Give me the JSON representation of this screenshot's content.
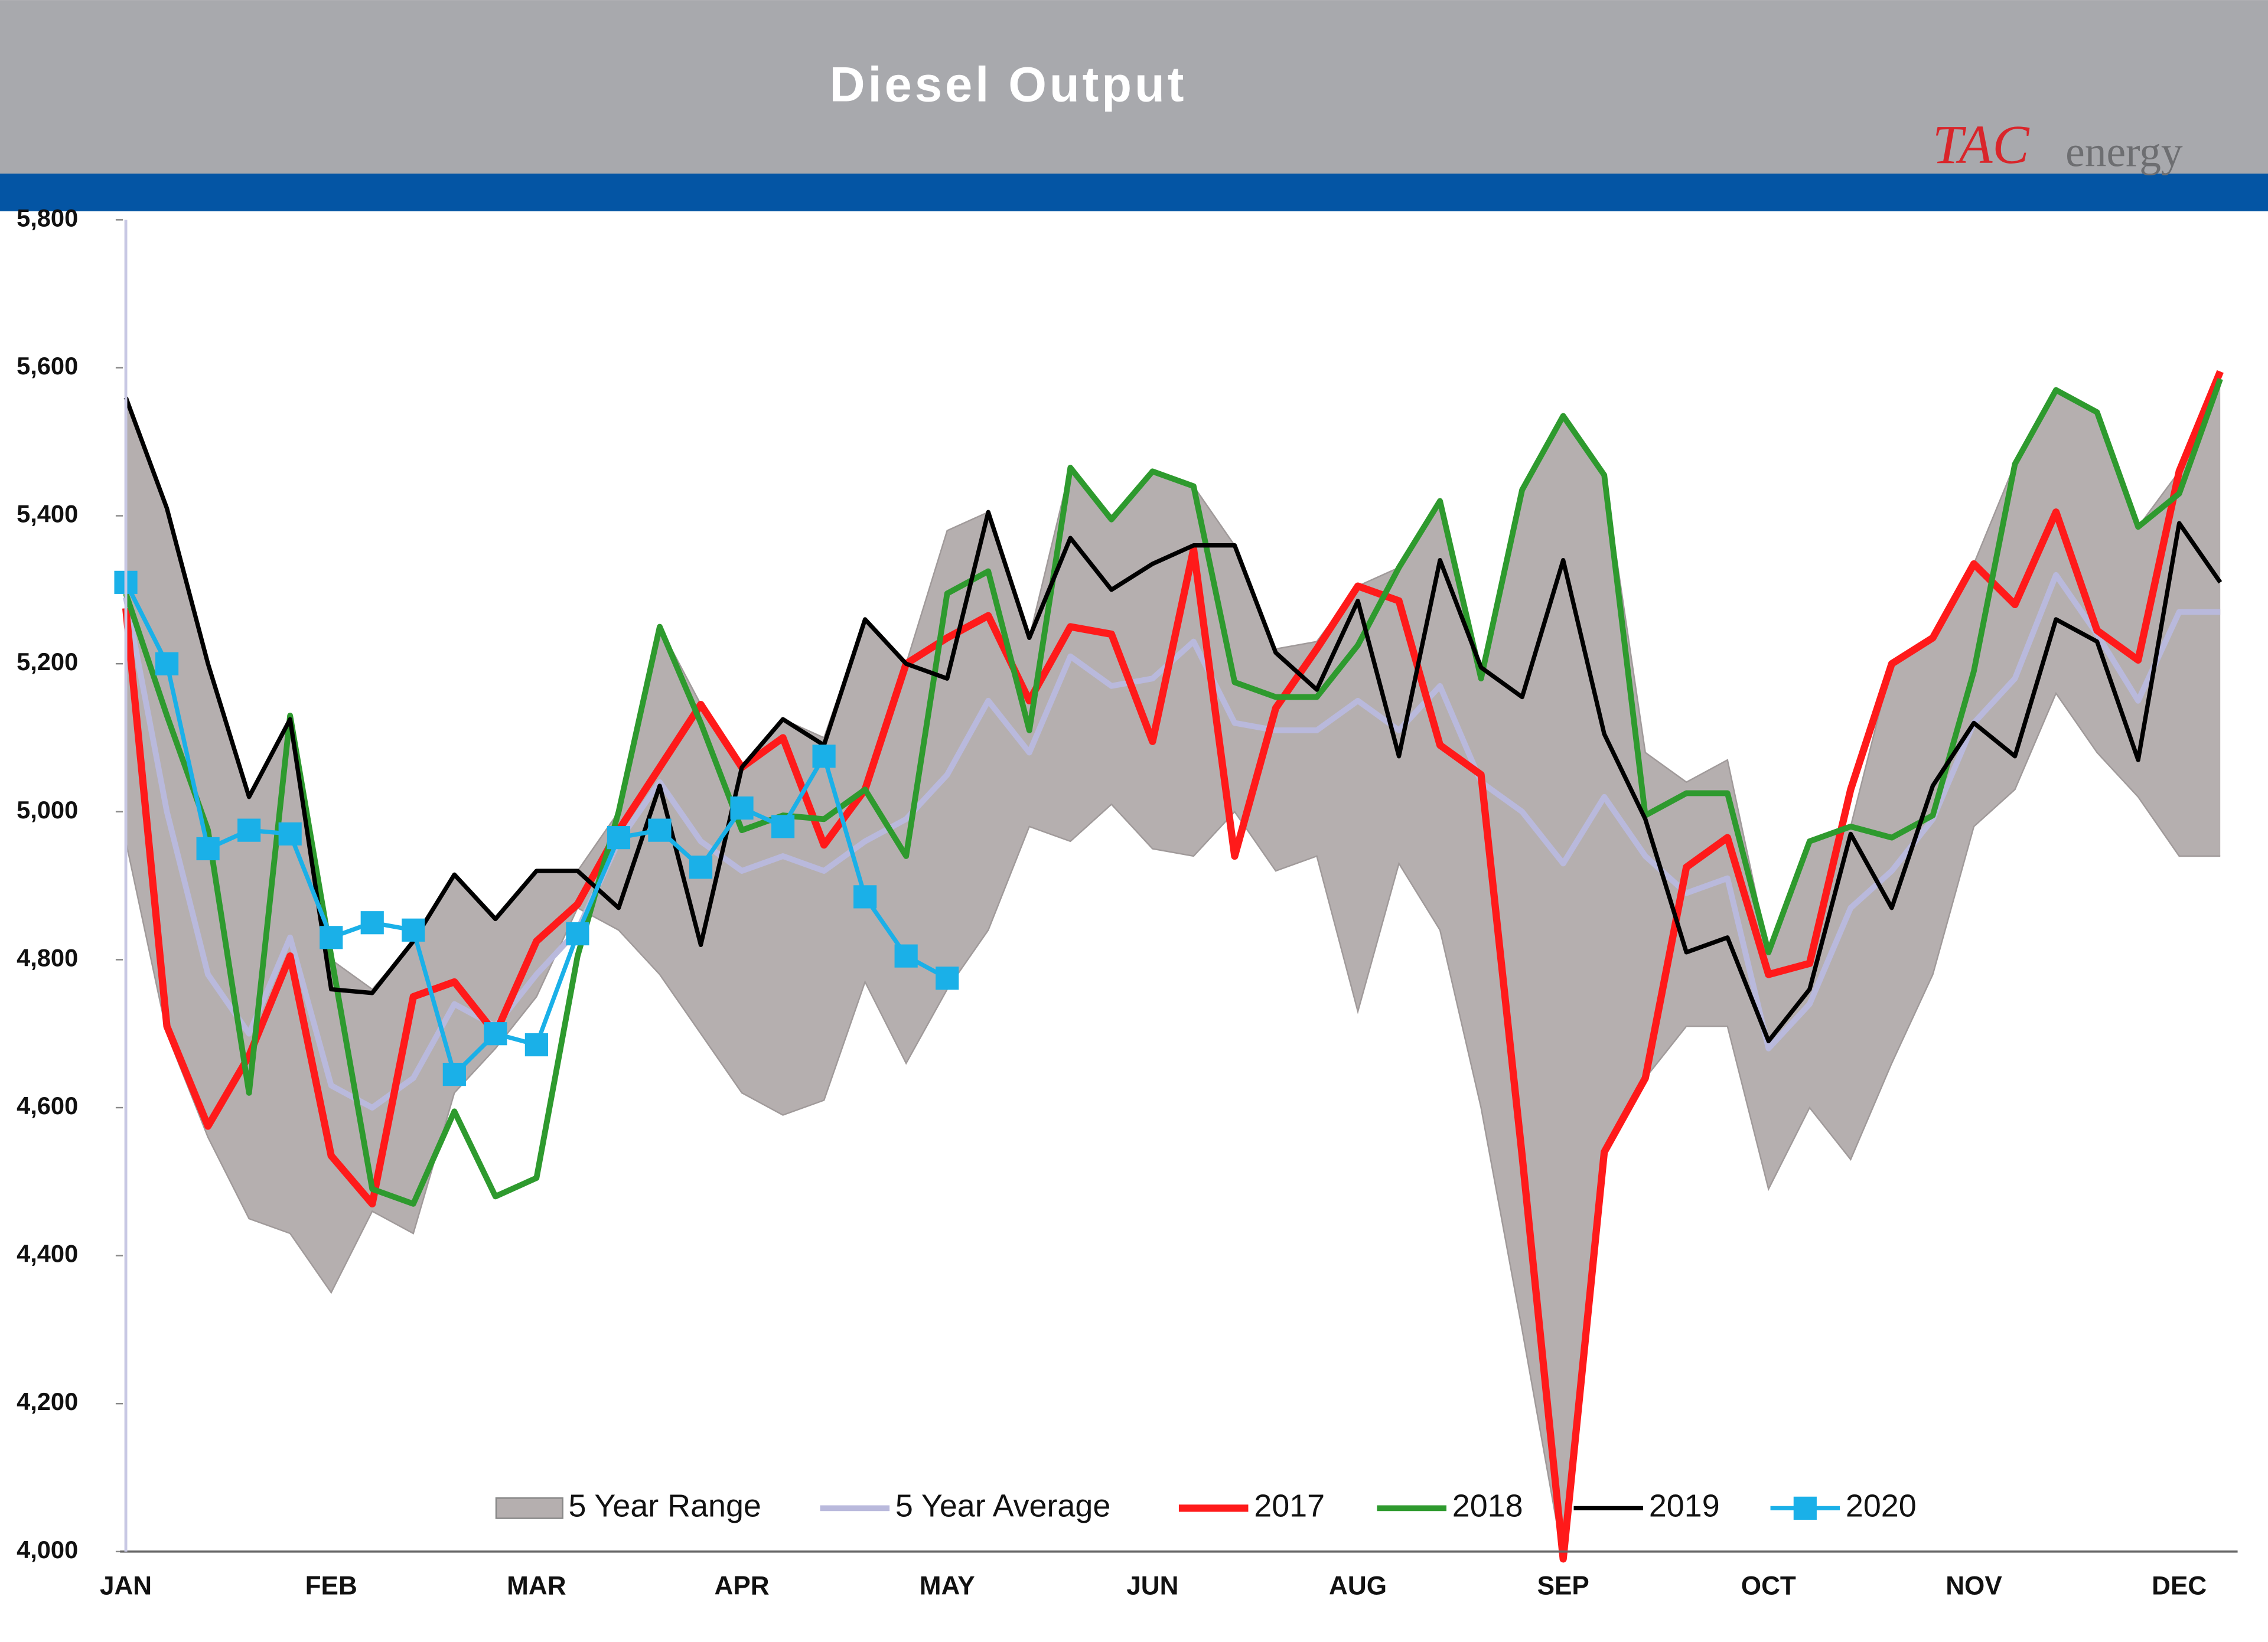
{
  "logo": {
    "mark": "TAC",
    "word": "energy"
  },
  "chart_data": {
    "type": "line",
    "title": "Diesel Output",
    "legend": "bottom",
    "categories": [
      "JAN",
      null,
      null,
      null,
      null,
      "FEB",
      null,
      null,
      null,
      null,
      "MAR",
      null,
      null,
      null,
      null,
      "APR",
      null,
      null,
      null,
      null,
      "MAY",
      null,
      null,
      null,
      null,
      "JUN",
      null,
      null,
      null,
      null,
      "AUG",
      null,
      null,
      null,
      null,
      "SEP",
      null,
      null,
      null,
      null,
      "OCT",
      null,
      null,
      null,
      null,
      "NOV",
      null,
      null,
      null,
      null,
      "DEC",
      null
    ],
    "ylim": [
      4000,
      5800
    ],
    "yticks": [
      {
        "value": 4000,
        "label": "4,000"
      },
      {
        "value": 4200,
        "label": "4,200"
      },
      {
        "value": 4400,
        "label": "4,400"
      },
      {
        "value": 4600,
        "label": "4,600"
      },
      {
        "value": 4800,
        "label": "4,800"
      },
      {
        "value": 5000,
        "label": "5,000"
      },
      {
        "value": 5200,
        "label": "5,200"
      },
      {
        "value": 5400,
        "label": "5,400"
      },
      {
        "value": 5600,
        "label": "5,600"
      },
      {
        "value": 5800,
        "label": "5,800"
      }
    ],
    "range": {
      "name": "5 Year Range",
      "color": "#b5afaf",
      "low": [
        4960,
        4700,
        4560,
        4450,
        4430,
        4350,
        4460,
        4430,
        4620,
        4680,
        4750,
        4870,
        4840,
        4780,
        4700,
        4620,
        4590,
        4610,
        4770,
        4660,
        4760,
        4840,
        4980,
        4960,
        5010,
        4950,
        4940,
        5000,
        4920,
        4940,
        4730,
        4930,
        4840,
        4600,
        4300,
        3990,
        4540,
        4640,
        4710,
        4710,
        4490,
        4600,
        4530,
        4660,
        4780,
        4980,
        5030,
        5160,
        5080,
        5020,
        4940,
        4940
      ],
      "high": [
        5560,
        5410,
        5200,
        5020,
        5125,
        4800,
        4760,
        4825,
        4915,
        4855,
        4920,
        4920,
        5000,
        5250,
        5145,
        5060,
        5125,
        5100,
        5260,
        5200,
        5380,
        5405,
        5235,
        5465,
        5400,
        5460,
        5440,
        5360,
        5220,
        5230,
        5305,
        5330,
        5420,
        5195,
        5435,
        5535,
        5455,
        5080,
        5040,
        5070,
        4810,
        4960,
        4980,
        5200,
        5235,
        5335,
        5470,
        5570,
        5540,
        5385,
        5460,
        5595
      ]
    },
    "series": [
      {
        "name": "5 Year Average",
        "color": "#b9b9dc",
        "width": 4,
        "values": [
          5290,
          5000,
          4780,
          4700,
          4830,
          4630,
          4600,
          4640,
          4740,
          4710,
          4780,
          4840,
          4960,
          5040,
          4960,
          4920,
          4940,
          4920,
          4960,
          4990,
          5050,
          5150,
          5080,
          5210,
          5170,
          5180,
          5230,
          5120,
          5110,
          5110,
          5150,
          5110,
          5170,
          5040,
          5000,
          4930,
          5020,
          4940,
          4890,
          4910,
          4680,
          4740,
          4870,
          4920,
          4990,
          5120,
          5180,
          5320,
          5240,
          5150,
          5270,
          5270
        ]
      },
      {
        "name": "2017",
        "color": "#ff1a1a",
        "width": 5,
        "values": [
          5275,
          4710,
          4575,
          4670,
          4805,
          4535,
          4470,
          4750,
          4770,
          4700,
          4825,
          4875,
          4975,
          5060,
          5145,
          5060,
          5100,
          4955,
          5030,
          5200,
          5235,
          5265,
          5150,
          5250,
          5240,
          5095,
          5355,
          4940,
          5140,
          5220,
          5305,
          5285,
          5090,
          5050,
          4535,
          3990,
          4540,
          4640,
          4925,
          4965,
          4780,
          4795,
          5030,
          5200,
          5235,
          5335,
          5280,
          5405,
          5245,
          5205,
          5460,
          5595
        ]
      },
      {
        "name": "2018",
        "color": "#2e9a2e",
        "width": 4,
        "values": [
          5295,
          5130,
          4975,
          4620,
          5130,
          4805,
          4490,
          4470,
          4595,
          4480,
          4505,
          4805,
          5000,
          5250,
          5120,
          4975,
          4995,
          4990,
          5030,
          4940,
          5295,
          5325,
          5110,
          5465,
          5395,
          5460,
          5440,
          5175,
          5155,
          5155,
          5225,
          5330,
          5420,
          5180,
          5435,
          5535,
          5455,
          4995,
          5025,
          5025,
          4810,
          4960,
          4980,
          4965,
          4995,
          5190,
          5470,
          5570,
          5540,
          5385,
          5430,
          5585
        ]
      },
      {
        "name": "2019",
        "color": "#000000",
        "width": 3,
        "values": [
          5560,
          5410,
          5200,
          5020,
          5125,
          4760,
          4755,
          4825,
          4915,
          4855,
          4920,
          4920,
          4870,
          5035,
          4820,
          5060,
          5125,
          5090,
          5260,
          5200,
          5180,
          5405,
          5235,
          5370,
          5300,
          5335,
          5360,
          5360,
          5215,
          5165,
          5285,
          5075,
          5340,
          5195,
          5155,
          5340,
          5105,
          4990,
          4810,
          4830,
          4690,
          4760,
          4970,
          4870,
          5035,
          5120,
          5075,
          5260,
          5230,
          5070,
          5390,
          5310
        ]
      },
      {
        "name": "2020",
        "color": "#1ab0e8",
        "width": 3,
        "marker": "square",
        "values": [
          5310,
          5200,
          4950,
          4975,
          4970,
          4830,
          4850,
          4840,
          4645,
          4700,
          4685,
          4835,
          4965,
          4975,
          4925,
          5005,
          4980,
          5075,
          4885,
          4805,
          4775,
          null,
          null,
          null,
          null,
          null,
          null,
          null,
          null,
          null,
          null,
          null,
          null,
          null,
          null,
          null,
          null,
          null,
          null,
          null,
          null,
          null,
          null,
          null,
          null,
          null,
          null,
          null,
          null,
          null,
          null,
          null
        ]
      }
    ]
  }
}
